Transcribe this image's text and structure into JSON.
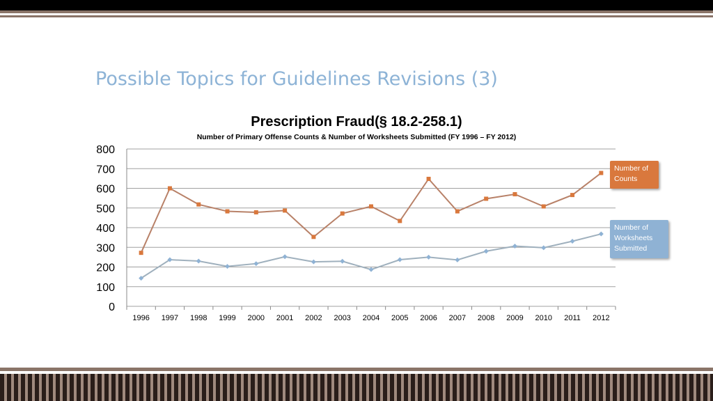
{
  "slide": {
    "title": "Possible Topics for Guidelines Revisions (3)"
  },
  "colors": {
    "counts": "#b88168",
    "counts_marker": "#d9783d",
    "worksheets": "#9fb0bd",
    "worksheets_marker": "#8fb2d4",
    "grid": "#a0a0a0",
    "title": "#8db3d6"
  },
  "chart_data": {
    "type": "line",
    "title": "Prescription Fraud(§ 18.2-258.1)",
    "subtitle": "Number of Primary Offense Counts & Number of Worksheets Submitted (FY 1996 – FY 2012)",
    "categories": [
      "1996",
      "1997",
      "1998",
      "1999",
      "2000",
      "2001",
      "2002",
      "2003",
      "2004",
      "2005",
      "2006",
      "2007",
      "2008",
      "2009",
      "2010",
      "2011",
      "2012"
    ],
    "series": [
      {
        "name": "Number of Counts",
        "values": [
          272,
          600,
          518,
          483,
          478,
          487,
          353,
          472,
          508,
          434,
          648,
          483,
          547,
          570,
          508,
          566,
          678
        ]
      },
      {
        "name": "Number of Worksheets Submitted",
        "values": [
          143,
          237,
          230,
          203,
          217,
          252,
          226,
          229,
          187,
          237,
          250,
          236,
          280,
          306,
          298,
          331,
          368
        ]
      }
    ],
    "ylim": [
      0,
      800
    ],
    "yticks": [
      0,
      100,
      200,
      300,
      400,
      500,
      600,
      700,
      800
    ],
    "grid": true,
    "legend_placement": "right"
  },
  "legend": {
    "counts_label": "Number of Counts",
    "worksheets_label": "Number of Worksheets Submitted"
  }
}
